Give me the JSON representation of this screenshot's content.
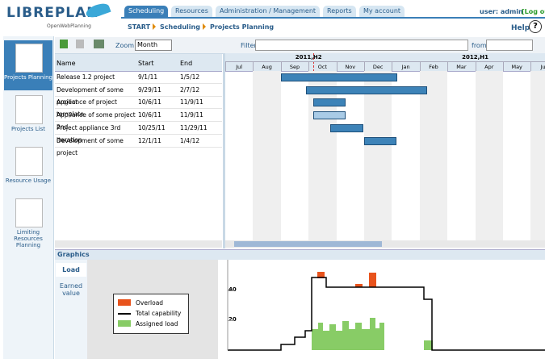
{
  "header": {
    "logo": "LIBREPLAN",
    "tagline": "OpenWebPlanning",
    "tabs": [
      "Scheduling",
      "Resources",
      "Administration / Management",
      "Reports",
      "My account"
    ],
    "user": "user: admin",
    "logout": "[Log ou",
    "breadcrumb": [
      "START",
      "Scheduling",
      "Projects Planning"
    ],
    "help": "Help",
    "help_icon": "?"
  },
  "sidebar": {
    "items": [
      "Projects Planning",
      "Projects List",
      "Resource Usage",
      "Limiting Resources Planning"
    ]
  },
  "toolbar": {
    "zoom_label": "Zoom:",
    "zoom_value": "Month",
    "filter_label": "Filter",
    "from_label": "from"
  },
  "table": {
    "columns": [
      "Name",
      "Start",
      "End"
    ],
    "rows": [
      [
        "Release 1.2 project",
        "9/1/11",
        "1/5/12"
      ],
      [
        "Development of some project",
        "9/29/11",
        "2/7/12"
      ],
      [
        "Appliance of project template",
        "10/6/11",
        "11/9/11"
      ],
      [
        "Appliance of some project 2nd",
        "10/6/11",
        "11/9/11"
      ],
      [
        "Project appliance 3rd iteration",
        "10/25/11",
        "11/29/11"
      ],
      [
        "Development of some project",
        "12/1/11",
        "1/4/12"
      ]
    ]
  },
  "timeline": {
    "periods": [
      "2011,H2",
      "2012,H1"
    ],
    "months": [
      "Jul",
      "Aug",
      "Sep",
      "Oct",
      "Nov",
      "Dec",
      "Jan",
      "Feb",
      "Mar",
      "Apr",
      "May",
      "Jun"
    ]
  },
  "graphics": {
    "title": "Graphics",
    "tabs": [
      "Load",
      "Earned value"
    ],
    "legend": [
      "Overload",
      "Total capability",
      "Assigned load"
    ],
    "yticks": [
      40,
      20
    ]
  }
}
